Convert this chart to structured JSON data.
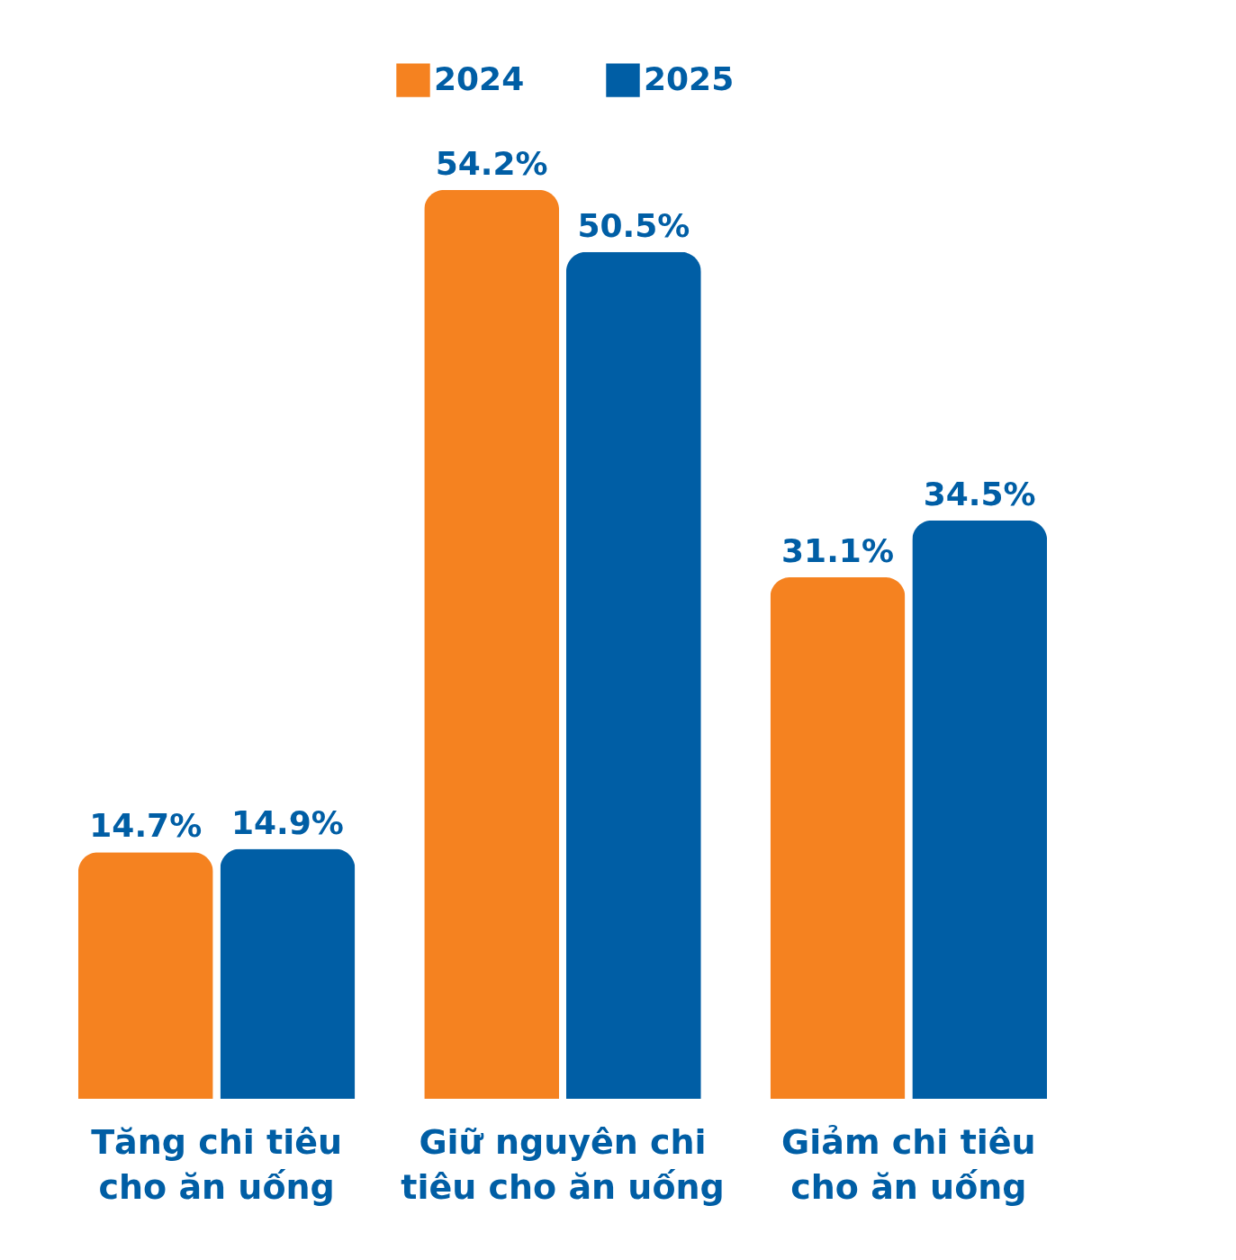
{
  "chart_data": {
    "type": "bar",
    "categories": [
      "Tăng chi tiêu cho ăn uống",
      "Giữ nguyên chi tiêu cho ăn uống",
      "Giảm chi tiêu cho ăn uống"
    ],
    "series": [
      {
        "name": "2024",
        "color": "#f58220",
        "values": [
          14.7,
          54.2,
          31.1
        ],
        "value_labels": [
          "14.7%",
          "54.2%",
          "31.1%"
        ]
      },
      {
        "name": "2025",
        "color": "#005ea5",
        "values": [
          14.9,
          50.5,
          34.5
        ],
        "value_labels": [
          "14.9%",
          "50.5%",
          "34.5%"
        ]
      }
    ],
    "legend": "top",
    "grid": false
  }
}
